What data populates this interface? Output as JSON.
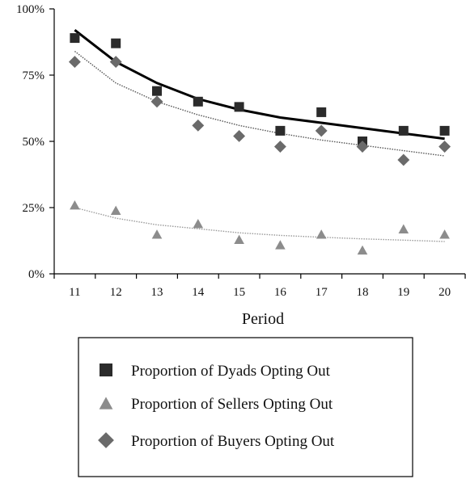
{
  "chart_data": {
    "type": "scatter",
    "title": "",
    "xlabel": "Period",
    "ylabel": "",
    "x": [
      11,
      12,
      13,
      14,
      15,
      16,
      17,
      18,
      19,
      20
    ],
    "x_ticks": [
      "11",
      "12",
      "13",
      "14",
      "15",
      "16",
      "17",
      "18",
      "19",
      "20"
    ],
    "ylim": [
      0,
      1
    ],
    "y_ticks": [
      {
        "value": 0,
        "label": "0%"
      },
      {
        "value": 0.25,
        "label": "25%"
      },
      {
        "value": 0.5,
        "label": "50%"
      },
      {
        "value": 0.75,
        "label": "75%"
      },
      {
        "value": 1,
        "label": "100%"
      }
    ],
    "grid": false,
    "legend_position": "bottom",
    "series": [
      {
        "name": "Proportion of  Dyads Opting Out",
        "marker": "square",
        "color": "#2b2b2b",
        "values": [
          0.89,
          0.87,
          0.69,
          0.65,
          0.63,
          0.54,
          0.61,
          0.5,
          0.54,
          0.54
        ],
        "trendline": {
          "style": "solid",
          "color": "#000000",
          "values": [
            0.92,
            0.8,
            0.72,
            0.66,
            0.62,
            0.59,
            0.57,
            0.55,
            0.53,
            0.51
          ]
        }
      },
      {
        "name": "Proportion of  Sellers Opting Out",
        "marker": "triangle",
        "color": "#8c8c8c",
        "values": [
          0.26,
          0.24,
          0.15,
          0.19,
          0.13,
          0.11,
          0.15,
          0.09,
          0.17,
          0.15
        ],
        "trendline": {
          "style": "dotted",
          "color": "#9a9a9a",
          "values": [
            0.25,
            0.21,
            0.185,
            0.17,
            0.155,
            0.145,
            0.138,
            0.132,
            0.127,
            0.122
          ]
        }
      },
      {
        "name": "Proportion of  Buyers Opting Out",
        "marker": "diamond",
        "color": "#6a6a6a",
        "values": [
          0.8,
          0.8,
          0.65,
          0.56,
          0.52,
          0.48,
          0.54,
          0.48,
          0.43,
          0.48
        ],
        "trendline": {
          "style": "dotted",
          "color": "#555555",
          "values": [
            0.84,
            0.72,
            0.65,
            0.6,
            0.56,
            0.53,
            0.505,
            0.485,
            0.465,
            0.445
          ]
        }
      }
    ]
  }
}
